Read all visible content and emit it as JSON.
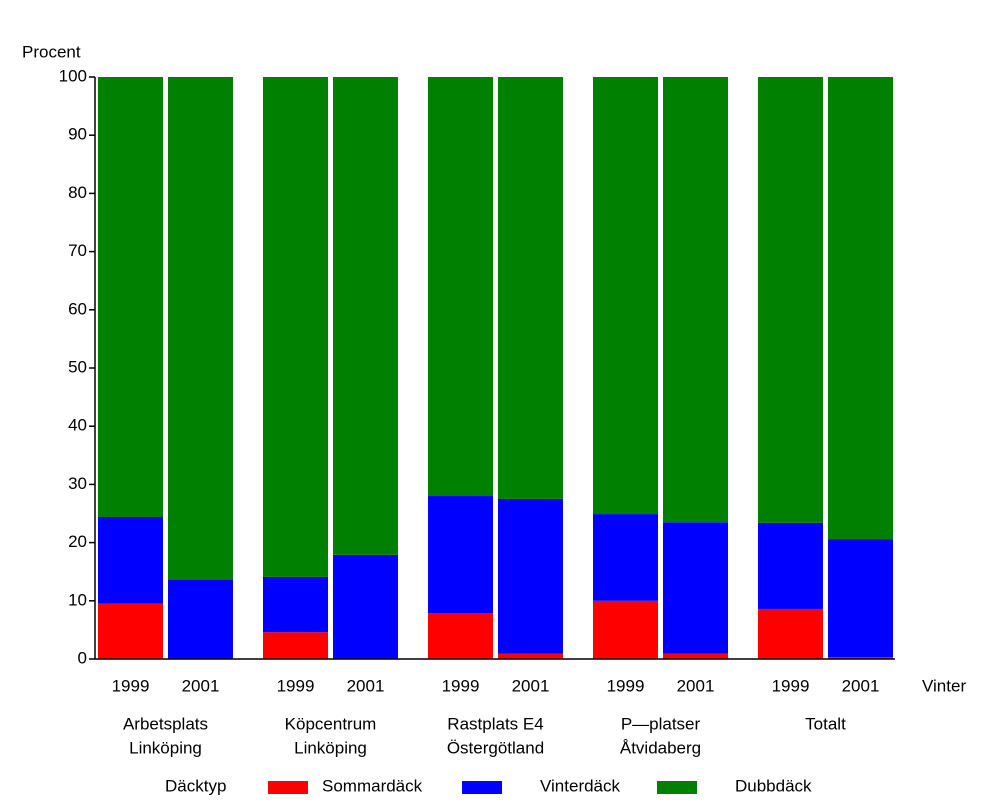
{
  "chart_data": {
    "type": "stacked_bar",
    "ylabel": "Procent",
    "xlabel": "Vinter",
    "categories": [
      "1999",
      "2001",
      "1999",
      "2001",
      "1999",
      "2001",
      "1999",
      "2001",
      "1999",
      "2001"
    ],
    "group_labels": [
      [
        "Arbetsplats",
        "Linköping"
      ],
      [
        "Köpcentrum",
        "Linköping"
      ],
      [
        "Rastplats  E4",
        "Östergötland"
      ],
      [
        "P—platser",
        "Åtvidaberg"
      ],
      [
        "Totalt"
      ]
    ],
    "legend_title": "Däcktyp",
    "series": [
      {
        "name": "Sommardäck",
        "color": "#ff0000",
        "values": [
          9.5,
          0,
          4.6,
          0,
          7.9,
          0.9,
          10.0,
          0.9,
          8.6,
          0.3
        ]
      },
      {
        "name": "Vinterdäck",
        "color": "#0000ff",
        "values": [
          14.9,
          13.7,
          9.5,
          17.9,
          20.1,
          26.6,
          14.9,
          22.6,
          14.8,
          20.3
        ]
      },
      {
        "name": "Dubbdäck",
        "color": "#008000",
        "values": [
          75.6,
          86.3,
          85.9,
          82.1,
          72.0,
          72.5,
          75.1,
          76.5,
          76.6,
          79.4
        ]
      }
    ],
    "ylim": [
      0,
      100
    ],
    "yticks": [
      0,
      10,
      20,
      30,
      40,
      50,
      60,
      70,
      80,
      90,
      100
    ]
  }
}
